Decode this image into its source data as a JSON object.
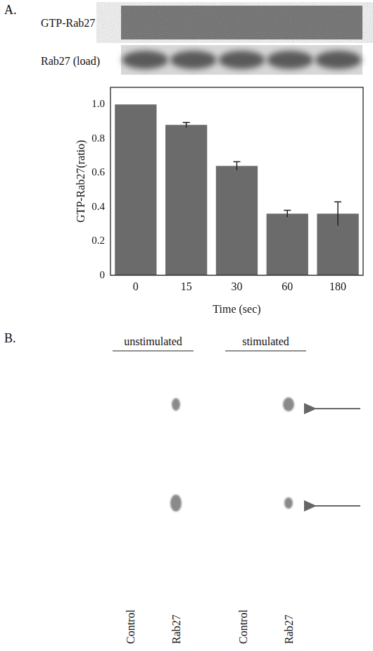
{
  "panel_a": {
    "letter": "A.",
    "blots": [
      "GTP-Rab27",
      "Rab27 (load)"
    ]
  },
  "chart_data": {
    "type": "bar",
    "categories": [
      "0",
      "15",
      "30",
      "60",
      "180"
    ],
    "values": [
      1.0,
      0.88,
      0.64,
      0.36,
      0.36
    ],
    "errors": [
      0,
      0.015,
      0.025,
      0.02,
      0.07
    ],
    "color": "#6b6b6b",
    "x_label": "Time (sec)",
    "y_label": "GTP-Rab27(ratio)",
    "ylim": [
      0,
      1.1
    ],
    "yticks": [
      0,
      0.2,
      0.4,
      0.6,
      0.8,
      {
        "value": 1,
        "label": "1.0"
      }
    ],
    "grid": false
  },
  "panel_b": {
    "letter": "B.",
    "groups": [
      "unstimulated",
      "stimulated"
    ],
    "lanes": [
      "Control",
      "Rab27",
      "Control",
      "Rab27"
    ]
  }
}
